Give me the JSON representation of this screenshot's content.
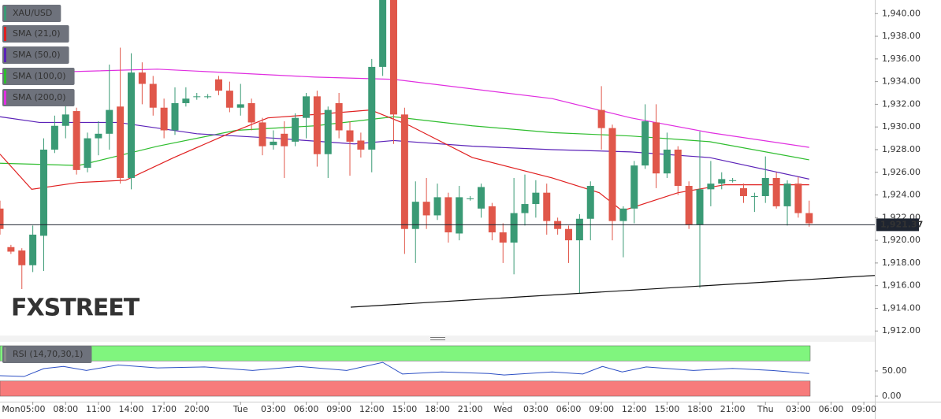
{
  "chart_data": [
    {
      "type": "candlestick",
      "name": "XAU/USD",
      "up_color": "#3a9a75",
      "down_color": "#e0574a",
      "xlim": [
        2,
        82
      ],
      "ylim": [
        1911.6,
        1941.2
      ],
      "yticks": [
        {
          "value": 1940,
          "label": "1,940.00"
        },
        {
          "value": 1938,
          "label": "1,938.00"
        },
        {
          "value": 1936,
          "label": "1,936.00"
        },
        {
          "value": 1934,
          "label": "1,934.00"
        },
        {
          "value": 1932,
          "label": "1,932.00"
        },
        {
          "value": 1930,
          "label": "1,930.00"
        },
        {
          "value": 1928,
          "label": "1,928.00"
        },
        {
          "value": 1926,
          "label": "1,926.00"
        },
        {
          "value": 1924,
          "label": "1,924.00"
        },
        {
          "value": 1922,
          "label": "1,922.00"
        },
        {
          "value": 1920,
          "label": "1,920.00"
        },
        {
          "value": 1918,
          "label": "1,918.00"
        },
        {
          "value": 1916,
          "label": "1,916.00"
        },
        {
          "value": 1914,
          "label": "1,914.00"
        },
        {
          "value": 1912,
          "label": "1,912.00"
        }
      ],
      "candles": {
        "x": [
          2,
          3,
          4,
          5,
          6,
          7,
          8,
          9,
          10,
          11,
          12,
          13,
          14,
          15,
          16,
          17,
          18,
          19,
          20,
          21,
          22,
          23,
          24,
          25,
          26,
          27,
          28,
          29,
          30,
          31,
          32,
          33,
          34,
          35,
          36,
          37,
          38,
          39,
          40,
          41,
          42,
          43,
          44,
          45,
          46,
          47,
          48,
          49,
          50,
          51,
          52,
          53,
          54,
          55,
          56,
          57,
          58,
          59,
          60,
          61,
          62,
          63,
          64,
          65,
          66,
          67,
          68,
          69,
          70,
          71,
          72,
          73,
          74,
          75,
          76
        ],
        "open": [
          1922.8,
          1919.4,
          1919.1,
          1917.8,
          1920.4,
          1928.0,
          1930.1,
          1931.4,
          1926.4,
          1929.0,
          1929.4,
          1931.8,
          1925.5,
          1934.8,
          1933.8,
          1931.7,
          1929.7,
          1932.1,
          1932.7,
          1932.7,
          1934.2,
          1933.2,
          1931.7,
          1932.1,
          1930.4,
          1928.4,
          1929.4,
          1928.7,
          1930.8,
          1932.7,
          1927.6,
          1932.1,
          1929.7,
          1928.8,
          1928.0,
          1935.3,
          1941.5,
          1931.1,
          1921.0,
          1923.4,
          1922.2,
          1923.8,
          1920.6,
          1923.7,
          1922.8,
          1923.0,
          1920.7,
          1919.8,
          1922.4,
          1923.2,
          1924.2,
          1921.7,
          1921.0,
          1920.0,
          1921.9,
          1931.5,
          1929.9,
          1921.7,
          1922.8,
          1926.6,
          1930.4,
          1925.9,
          1928.0,
          1924.8,
          1921.4,
          1924.5,
          1925.0,
          1925.3,
          1924.6,
          1923.9,
          1923.9,
          1925.5,
          1923.0,
          1925.0,
          1922.4
        ],
        "high": [
          1923.5,
          1919.6,
          1919.3,
          1921.3,
          1929.0,
          1931.0,
          1932.0,
          1931.7,
          1929.5,
          1930.5,
          1935.5,
          1937.0,
          1936.5,
          1935.7,
          1934.5,
          1932.5,
          1933.5,
          1933.5,
          1933.0,
          1932.9,
          1934.5,
          1934.0,
          1933.8,
          1932.5,
          1930.8,
          1929.7,
          1930.5,
          1931.2,
          1933.0,
          1933.2,
          1931.8,
          1933.0,
          1930.5,
          1929.5,
          1936.0,
          1942.0,
          1942.0,
          1931.7,
          1925.2,
          1925.5,
          1925.0,
          1924.2,
          1924.8,
          1923.9,
          1925.0,
          1923.3,
          1921.5,
          1925.5,
          1925.8,
          1925.3,
          1925.0,
          1922.0,
          1921.3,
          1922.3,
          1925.2,
          1933.6,
          1930.2,
          1923.0,
          1927.0,
          1932.0,
          1932.0,
          1929.5,
          1928.3,
          1925.2,
          1929.6,
          1927.0,
          1926.0,
          1925.5,
          1925.0,
          1924.2,
          1927.4,
          1926.0,
          1925.3,
          1925.6,
          1923.5
        ],
        "low": [
          1920.5,
          1918.8,
          1915.7,
          1917.2,
          1917.3,
          1927.7,
          1929.0,
          1925.8,
          1926.0,
          1927.5,
          1928.0,
          1925.0,
          1924.5,
          1932.0,
          1931.0,
          1929.0,
          1929.3,
          1931.8,
          1932.4,
          1932.5,
          1932.8,
          1931.3,
          1931.0,
          1929.7,
          1927.5,
          1928.0,
          1925.5,
          1928.3,
          1929.0,
          1926.5,
          1925.5,
          1929.0,
          1925.7,
          1927.3,
          1926.0,
          1934.5,
          1928.5,
          1918.8,
          1918.0,
          1921.0,
          1921.8,
          1919.8,
          1920.0,
          1923.5,
          1922.0,
          1920.0,
          1918.0,
          1917.0,
          1921.3,
          1922.0,
          1920.5,
          1920.5,
          1918.0,
          1915.3,
          1920.0,
          1928.0,
          1920.0,
          1918.5,
          1921.5,
          1926.3,
          1924.6,
          1925.5,
          1924.0,
          1921.0,
          1915.8,
          1923.0,
          1924.5,
          1925.1,
          1923.3,
          1922.5,
          1923.3,
          1922.8,
          1921.3,
          1922.0,
          1921.2
        ],
        "close": [
          1921.0,
          1919.0,
          1917.8,
          1920.5,
          1928.0,
          1930.1,
          1931.1,
          1926.2,
          1929.0,
          1929.4,
          1931.5,
          1925.5,
          1934.8,
          1933.8,
          1931.7,
          1929.7,
          1932.1,
          1932.5,
          1932.7,
          1932.7,
          1933.2,
          1931.7,
          1932.0,
          1930.4,
          1928.3,
          1928.7,
          1928.3,
          1930.8,
          1932.7,
          1927.6,
          1931.5,
          1929.7,
          1928.7,
          1928.0,
          1935.3,
          1941.5,
          1931.1,
          1921.0,
          1923.4,
          1922.2,
          1923.8,
          1920.7,
          1923.8,
          1923.7,
          1924.7,
          1920.7,
          1919.8,
          1922.4,
          1923.2,
          1924.2,
          1921.7,
          1921.0,
          1920.0,
          1921.9,
          1924.8,
          1929.9,
          1921.7,
          1922.8,
          1926.6,
          1930.5,
          1925.9,
          1928.0,
          1924.8,
          1921.4,
          1924.5,
          1925.0,
          1925.4,
          1925.3,
          1923.9,
          1923.9,
          1925.5,
          1923.0,
          1925.0,
          1922.4,
          1921.5
        ]
      },
      "series": [
        {
          "name": "SMA (21,0)",
          "color": "#e02020",
          "x": [
            2,
            4.9,
            9.2,
            13.5,
            17.9,
            22.9,
            26.5,
            30.8,
            35.9,
            39.5,
            45.2,
            52.5,
            56.8,
            58.9,
            64.0,
            68.3,
            76.0
          ],
          "values": [
            1927.6,
            1924.5,
            1925.1,
            1925.3,
            1927.3,
            1929.4,
            1930.8,
            1931.1,
            1931.5,
            1930.1,
            1927.3,
            1925.5,
            1924.2,
            1922.6,
            1924.2,
            1924.9,
            1924.9
          ]
        },
        {
          "name": "SMA (50,0)",
          "color": "#5b22b8",
          "x": [
            2,
            5.6,
            12.8,
            20.0,
            27.2,
            34.4,
            38.0,
            45.2,
            52.5,
            59.7,
            66.9,
            76.0
          ],
          "values": [
            1930.9,
            1930.4,
            1930.4,
            1929.4,
            1929.0,
            1928.5,
            1928.8,
            1928.3,
            1928.0,
            1927.8,
            1927.3,
            1925.4
          ]
        },
        {
          "name": "SMA (100,0)",
          "color": "#2ebd2e",
          "x": [
            2,
            9.2,
            16.4,
            23.6,
            30.8,
            38.0,
            45.2,
            52.5,
            59.7,
            66.9,
            76.0
          ],
          "values": [
            1926.8,
            1926.6,
            1928.3,
            1929.7,
            1930.1,
            1930.9,
            1930.1,
            1929.5,
            1929.2,
            1928.7,
            1927.1
          ]
        },
        {
          "name": "SMA (200,0)",
          "color": "#e02ee0",
          "x": [
            2,
            16.4,
            30.8,
            38.0,
            52.5,
            59.7,
            66.9,
            76.0
          ],
          "values": [
            1934.7,
            1935.1,
            1934.4,
            1934.2,
            1932.5,
            1930.8,
            1929.5,
            1928.2
          ]
        }
      ],
      "trendline": {
        "color": "#111111",
        "x": [
          34.07,
          82
        ],
        "values": [
          1914.1,
          1916.9
        ]
      },
      "last_price": {
        "value": 1921.37,
        "label": "1,921.37"
      },
      "watermark": [
        "FX",
        "STREET"
      ]
    },
    {
      "type": "line",
      "xlim": [
        2,
        82
      ],
      "ylim": [
        -10.9,
        106.25
      ],
      "yticks": [
        {
          "value": 50,
          "label": "50.00"
        },
        {
          "value": 0,
          "label": "0.00"
        }
      ],
      "overbought": [
        70,
        100
      ],
      "overbought_color": "#80f57e",
      "oversold": [
        0,
        30
      ],
      "oversold_color": "#f77b7b",
      "series": [
        {
          "name": "RSI (14,70,30,1)",
          "color": "#2c4fc4",
          "x": [
            2,
            4.2,
            6.0,
            7.8,
            9.9,
            12.8,
            16.4,
            20.7,
            25.1,
            29.4,
            33.7,
            37.0,
            38.8,
            42.4,
            46.7,
            48.1,
            52.5,
            55.3,
            57.1,
            58.9,
            61.1,
            65.4,
            69.0,
            72.6,
            76.0
          ],
          "values": [
            40.6,
            39,
            54.7,
            59,
            51,
            62,
            56,
            58,
            51,
            59,
            51,
            67,
            44,
            48,
            45,
            42,
            48,
            44,
            59,
            48,
            58,
            51,
            55,
            51,
            45
          ]
        }
      ],
      "xticks": [
        {
          "value": 0,
          "label": "Mon"
        },
        {
          "value": 5,
          "label": "05:00"
        },
        {
          "value": 8,
          "label": "08:00"
        },
        {
          "value": 11,
          "label": "11:00"
        },
        {
          "value": 14,
          "label": "14:00"
        },
        {
          "value": 17,
          "label": "17:00"
        },
        {
          "value": 20,
          "label": "20:00"
        },
        {
          "value": 24,
          "label": "Tue"
        },
        {
          "value": 27,
          "label": "03:00"
        },
        {
          "value": 30,
          "label": "06:00"
        },
        {
          "value": 33,
          "label": "09:00"
        },
        {
          "value": 36,
          "label": "12:00"
        },
        {
          "value": 39,
          "label": "15:00"
        },
        {
          "value": 42,
          "label": "18:00"
        },
        {
          "value": 45,
          "label": "21:00"
        },
        {
          "value": 48,
          "label": "Wed"
        },
        {
          "value": 51,
          "label": "03:00"
        },
        {
          "value": 54,
          "label": "06:00"
        },
        {
          "value": 57,
          "label": "09:00"
        },
        {
          "value": 60,
          "label": "12:00"
        },
        {
          "value": 63,
          "label": "15:00"
        },
        {
          "value": 66,
          "label": "18:00"
        },
        {
          "value": 69,
          "label": "21:00"
        },
        {
          "value": 72,
          "label": "Thu"
        },
        {
          "value": 75,
          "label": "03:00"
        },
        {
          "value": 78,
          "label": "06:00"
        },
        {
          "value": 81,
          "label": "09:00"
        }
      ]
    }
  ]
}
